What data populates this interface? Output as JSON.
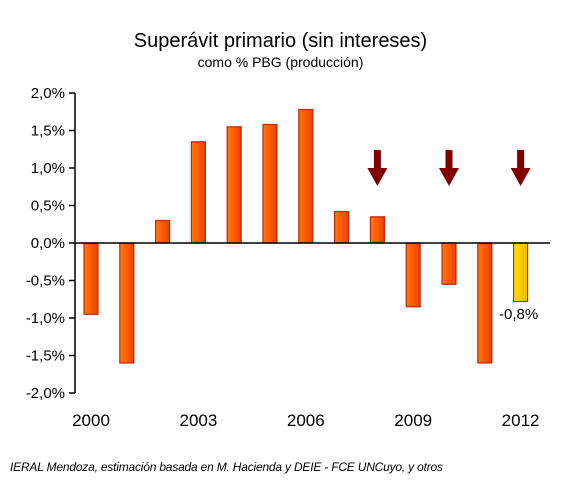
{
  "chart_data": {
    "type": "bar",
    "title": "Superávit primario (sin intereses)",
    "subtitle": "como % PBG (producción)",
    "x": [
      2000,
      2001,
      2002,
      2003,
      2004,
      2005,
      2006,
      2007,
      2008,
      2009,
      2010,
      2011,
      2012
    ],
    "x_tick_labels": [
      "2000",
      "2003",
      "2006",
      "2009",
      "2012"
    ],
    "x_tick_values": [
      2000,
      2003,
      2006,
      2009,
      2012
    ],
    "values": [
      -0.95,
      -1.6,
      0.3,
      1.35,
      1.55,
      1.58,
      1.78,
      0.42,
      0.35,
      -0.85,
      -0.55,
      -1.6,
      -0.78
    ],
    "ylim": [
      -2.0,
      2.0
    ],
    "y_ticks": [
      2.0,
      1.5,
      1.0,
      0.5,
      0.0,
      -0.5,
      -1.0,
      -1.5,
      -2.0
    ],
    "y_tick_labels": [
      "2,0%",
      "1,5%",
      "1,0%",
      "0,5%",
      "0,0%",
      "-0,5%",
      "-1,0%",
      "-1,5%",
      "-2,0%"
    ],
    "grid": false,
    "highlight": {
      "x": 2012,
      "label": "-0,8%",
      "color": "#f7c800"
    },
    "arrows_at": [
      2008,
      2010,
      2012
    ],
    "colors": {
      "bar_fill": "#ff6600",
      "bar_stroke": "#c0281a",
      "highlight_stroke": "#c0281a",
      "arrow": "#800000",
      "axis": "#000000"
    }
  },
  "source": "IERAL Mendoza, estimación basada en M. Hacienda y DEIE - FCE UNCuyo, y otros"
}
